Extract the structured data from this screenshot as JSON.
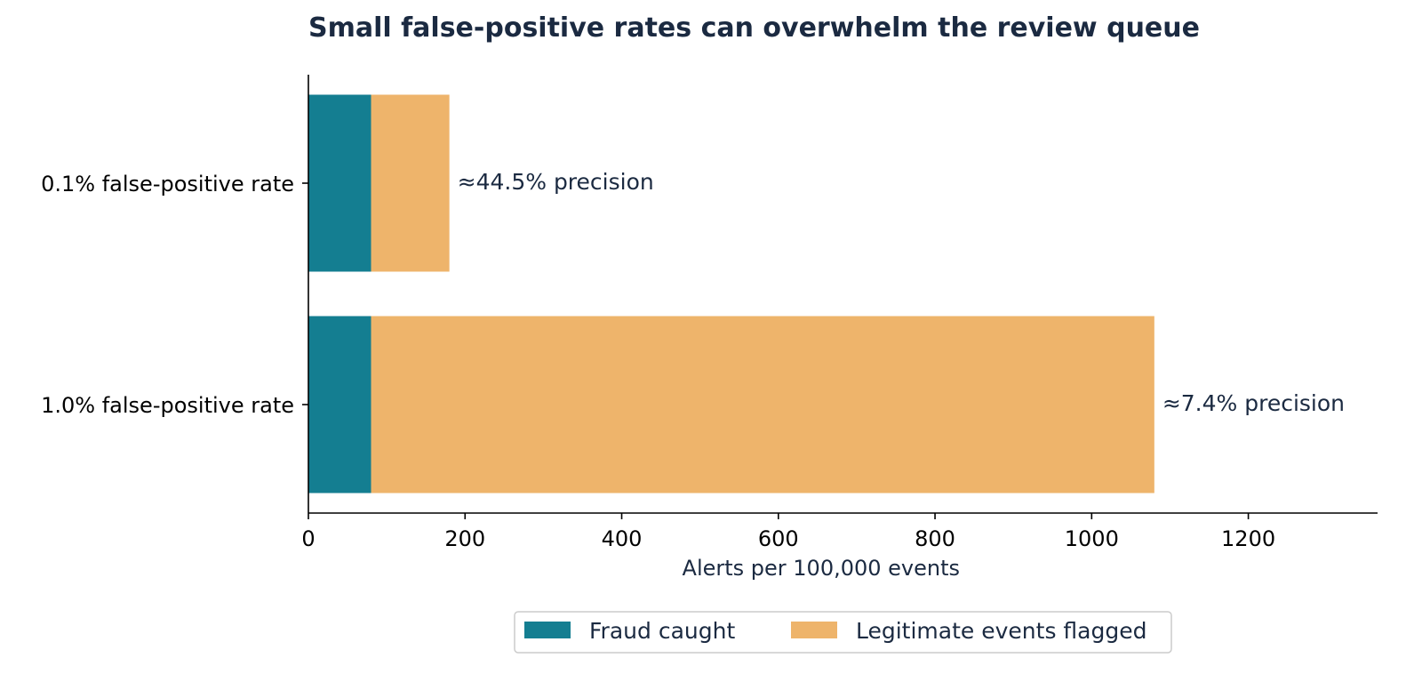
{
  "chart_data": {
    "type": "bar",
    "orientation": "horizontal",
    "stacked": true,
    "title": "Small false-positive rates can overwhelm the review queue",
    "xlabel": "Alerts per 100,000 events",
    "ylabel": "",
    "xlim": [
      0,
      1365
    ],
    "xticks": [
      0,
      200,
      400,
      600,
      800,
      1000,
      1200
    ],
    "categories": [
      "0.1% false-positive rate",
      "1.0% false-positive rate"
    ],
    "series": [
      {
        "name": "Fraud caught",
        "values": [
          80,
          80
        ],
        "color": "#147e91"
      },
      {
        "name": "Legitimate events flagged",
        "values": [
          100,
          1000
        ],
        "color": "#eeb46b"
      }
    ],
    "annotations": [
      "≈44.5% precision",
      "≈7.4% precision"
    ],
    "legend_position": "bottom-center",
    "grid": false
  }
}
